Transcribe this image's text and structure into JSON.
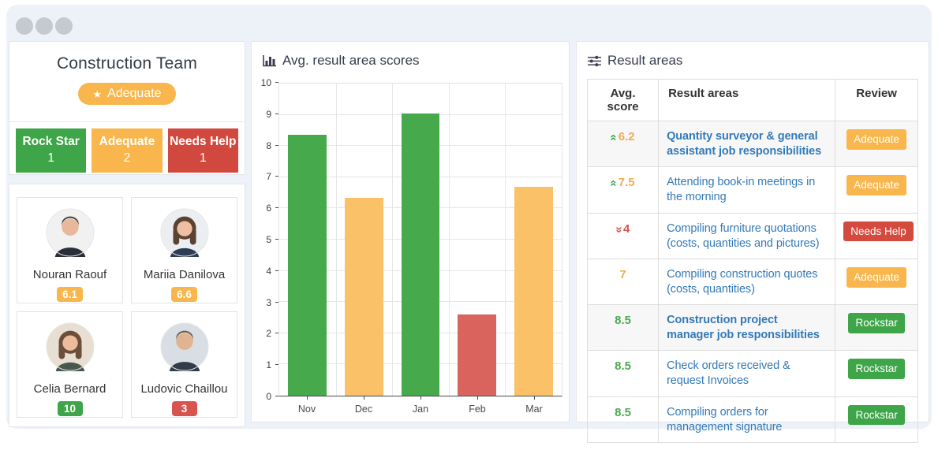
{
  "team_panel": {
    "title": "Construction Team",
    "status_badge": {
      "icon": "star",
      "label": "Adequate"
    },
    "stats": [
      {
        "label": "Rock Star",
        "value": "1",
        "status": "rockstar"
      },
      {
        "label": "Adequate",
        "value": "2",
        "status": "adequate"
      },
      {
        "label": "Needs Help",
        "value": "1",
        "status": "needshelp"
      }
    ]
  },
  "members": [
    {
      "name": "Nouran Raouf",
      "score": "6.1",
      "level": "adequate"
    },
    {
      "name": "Mariia Danilova",
      "score": "6.6",
      "level": "adequate"
    },
    {
      "name": "Celia Bernard",
      "score": "10",
      "level": "rockstar"
    },
    {
      "name": "Ludovic Chaillou",
      "score": "3",
      "level": "needshelp"
    }
  ],
  "chart_panel": {
    "title": "Avg. result area scores"
  },
  "chart_data": {
    "type": "bar",
    "categories": [
      "Nov",
      "Dec",
      "Jan",
      "Feb",
      "Mar"
    ],
    "values": [
      8.35,
      6.35,
      9.05,
      2.6,
      6.7
    ],
    "colors": [
      "#46a94c",
      "#fbc168",
      "#46a94c",
      "#d9635d",
      "#fbc168"
    ],
    "title": "Avg. result area scores",
    "xlabel": "",
    "ylabel": "",
    "ylim": [
      0,
      10
    ],
    "ytick_step": 1,
    "grid": true,
    "legend": false
  },
  "result_areas_panel": {
    "title": "Result areas",
    "table": {
      "headers": [
        "Avg. score",
        "Result areas",
        "Review"
      ],
      "rows": [
        {
          "score": "6.2",
          "trend": "up",
          "score_color": "orange",
          "area": "Quantity surveyor & general assistant job responsibilities",
          "emphasis": "bold",
          "review": "Adequate",
          "review_type": "adequate",
          "shaded": true
        },
        {
          "score": "7.5",
          "trend": "up",
          "score_color": "orange",
          "area": "Attending book-in meetings in the morning",
          "emphasis": "normal",
          "review": "Adequate",
          "review_type": "adequate",
          "shaded": false
        },
        {
          "score": "4",
          "trend": "down",
          "score_color": "red",
          "area": "Compiling furniture quotations (costs, quantities and pictures)",
          "emphasis": "normal",
          "review": "Needs Help",
          "review_type": "needshelp",
          "shaded": false
        },
        {
          "score": "7",
          "trend": "none",
          "score_color": "orange",
          "area": "Compiling construction quotes (costs, quantities)",
          "emphasis": "normal",
          "review": "Adequate",
          "review_type": "adequate",
          "shaded": false
        },
        {
          "score": "8.5",
          "trend": "none",
          "score_color": "green",
          "area": "Construction project manager job responsibilities",
          "emphasis": "bold",
          "review": "Rockstar",
          "review_type": "rockstar",
          "shaded": true
        },
        {
          "score": "8.5",
          "trend": "none",
          "score_color": "green",
          "area": "Check orders received & request Invoices",
          "emphasis": "normal",
          "review": "Rockstar",
          "review_type": "rockstar",
          "shaded": false
        },
        {
          "score": "8.5",
          "trend": "none",
          "score_color": "green",
          "area": "Compiling orders for management signature",
          "emphasis": "normal",
          "review": "Rockstar",
          "review_type": "rockstar",
          "shaded": false
        }
      ]
    }
  },
  "colors": {
    "rockstar_green": "#3fa549",
    "adequate_orange": "#f8b64c",
    "needshelp_red": "#d9534f",
    "link_blue": "#337ab7",
    "window_background": "#edf1f8"
  }
}
